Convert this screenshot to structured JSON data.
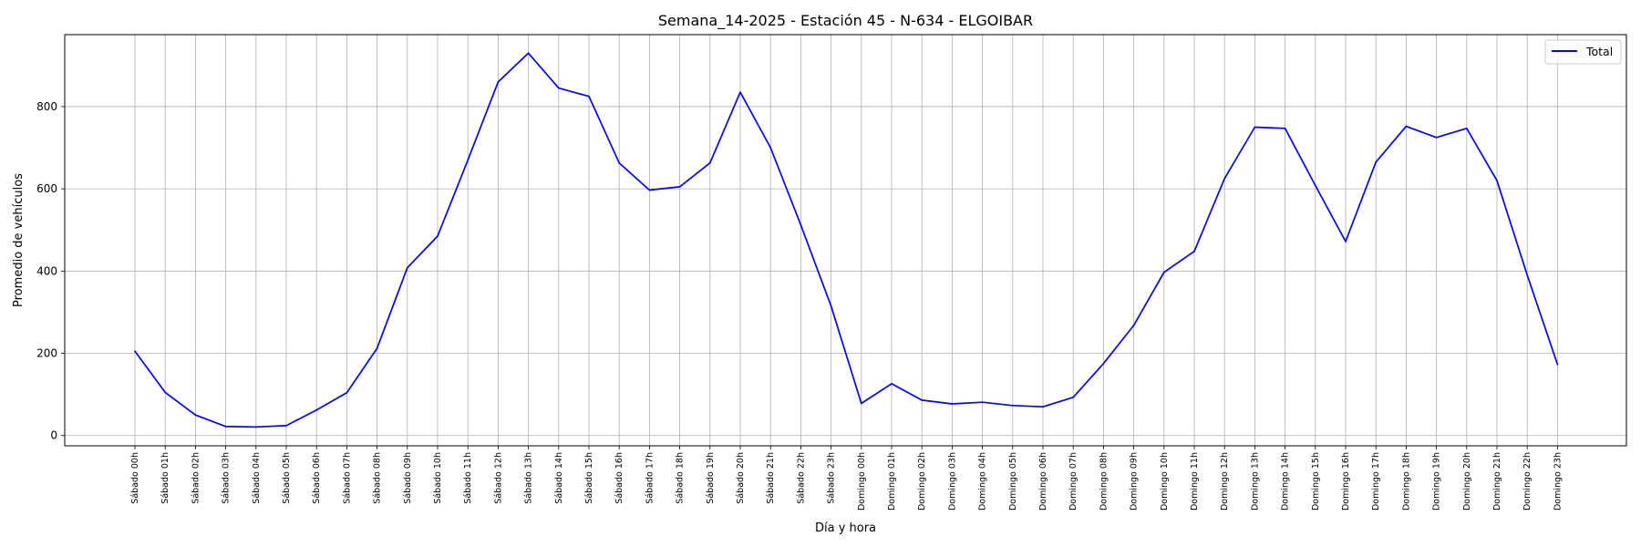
{
  "chart_data": {
    "type": "line",
    "title": "Semana_14-2025 - Estación 45 - N-634  - ELGOIBAR",
    "xlabel": "Día y hora",
    "ylabel": "Promedio de vehículos",
    "ylim": [
      -25,
      975
    ],
    "yticks": [
      0,
      200,
      400,
      600,
      800
    ],
    "grid": true,
    "legend_position": "top-right",
    "categories": [
      "Sábado 00h",
      "Sábado 01h",
      "Sábado 02h",
      "Sábado 03h",
      "Sábado 04h",
      "Sábado 05h",
      "Sábado 06h",
      "Sábado 07h",
      "Sábado 08h",
      "Sábado 09h",
      "Sábado 10h",
      "Sábado 11h",
      "Sábado 12h",
      "Sábado 13h",
      "Sábado 14h",
      "Sábado 15h",
      "Sábado 16h",
      "Sábado 17h",
      "Sábado 18h",
      "Sábado 19h",
      "Sábado 20h",
      "Sábado 21h",
      "Sábado 22h",
      "Sábado 23h",
      "Domingo 00h",
      "Domingo 01h",
      "Domingo 02h",
      "Domingo 03h",
      "Domingo 04h",
      "Domingo 05h",
      "Domingo 06h",
      "Domingo 07h",
      "Domingo 08h",
      "Domingo 09h",
      "Domingo 10h",
      "Domingo 11h",
      "Domingo 12h",
      "Domingo 13h",
      "Domingo 14h",
      "Domingo 15h",
      "Domingo 16h",
      "Domingo 17h",
      "Domingo 18h",
      "Domingo 19h",
      "Domingo 20h",
      "Domingo 21h",
      "Domingo 22h",
      "Domingo 23h"
    ],
    "series": [
      {
        "name": "Total",
        "color": "#0000ff",
        "values": [
          205,
          105,
          50,
          22,
          21,
          24,
          62,
          104,
          212,
          408,
          485,
          670,
          860,
          930,
          845,
          825,
          663,
          597,
          605,
          663,
          835,
          700,
          512,
          315,
          78,
          126,
          86,
          77,
          81,
          73,
          70,
          93,
          175,
          268,
          397,
          448,
          625,
          750,
          747,
          608,
          472,
          665,
          752,
          725,
          747,
          620,
          390,
          173
        ]
      }
    ]
  }
}
